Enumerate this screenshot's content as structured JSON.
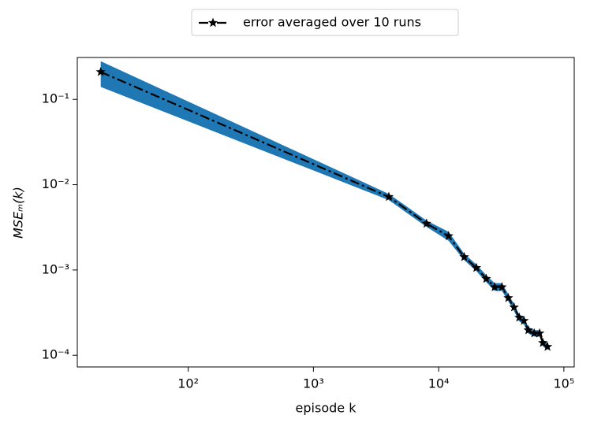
{
  "chart_data": {
    "type": "line",
    "xlabel": "episode k",
    "ylabel": "MSEₘ(k)",
    "x": [
      20,
      4000,
      8000,
      12000,
      16000,
      20000,
      24000,
      28000,
      32000,
      36000,
      40000,
      44000,
      48000,
      52000,
      58000,
      64000,
      68000,
      74000
    ],
    "series": [
      {
        "name": "error averaged over 10 runs",
        "color": "#000000",
        "values": [
          0.21,
          0.0072,
          0.0035,
          0.0025,
          0.00142,
          0.00106,
          0.00079,
          0.00063,
          0.00063,
          0.00047,
          0.000365,
          0.000277,
          0.000254,
          0.000197,
          0.000181,
          0.000181,
          0.00014,
          0.000126
        ]
      }
    ],
    "band": {
      "color": "#1f77b4",
      "upper": [
        0.28,
        0.0078,
        0.0038,
        0.0028,
        0.00155,
        0.00116,
        0.00087,
        0.0007,
        0.0007,
        0.00052,
        0.0004,
        0.0003,
        0.00028,
        0.000215,
        0.000197,
        0.000197,
        0.000153,
        0.000138
      ],
      "lower": [
        0.14,
        0.0066,
        0.0032,
        0.0022,
        0.0013,
        0.00097,
        0.00072,
        0.00057,
        0.00057,
        0.00043,
        0.00033,
        0.00025,
        0.00023,
        0.00018,
        0.000166,
        0.000166,
        0.000128,
        0.000115
      ]
    },
    "xlog": true,
    "ylog": true,
    "xlim": [
      13,
      121000
    ],
    "ylim": [
      7.3e-05,
      0.31
    ],
    "xticks": [
      {
        "value": 100,
        "label": "10²"
      },
      {
        "value": 1000,
        "label": "10³"
      },
      {
        "value": 10000,
        "label": "10⁴"
      },
      {
        "value": 100000,
        "label": "10⁵"
      }
    ],
    "yticks": [
      {
        "value": 0.0001,
        "label": "10⁻⁴"
      },
      {
        "value": 0.001,
        "label": "10⁻³"
      },
      {
        "value": 0.01,
        "label": "10⁻²"
      },
      {
        "value": 0.1,
        "label": "10⁻¹"
      }
    ],
    "legend": "top"
  }
}
